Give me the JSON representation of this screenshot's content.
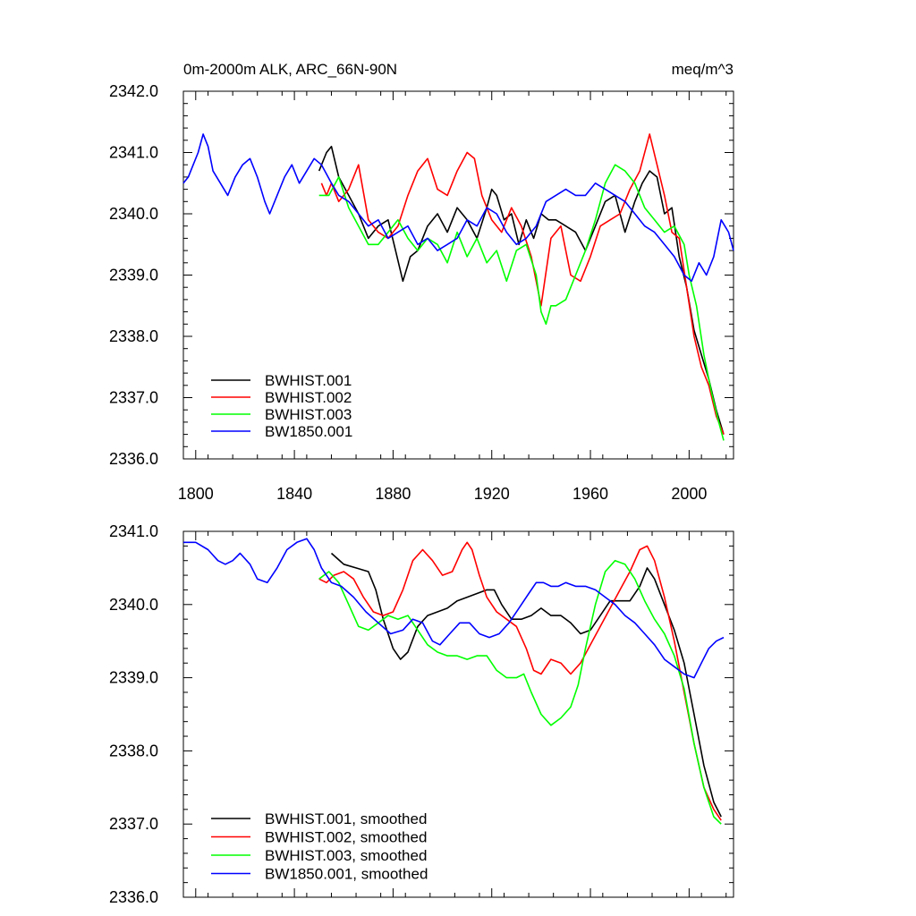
{
  "chart_data": [
    {
      "type": "line",
      "title": "0m-2000m ALK, ARC_66N-90N",
      "units": "meq/m^3",
      "xlim": [
        1795,
        2018
      ],
      "ylim": [
        2336.0,
        2342.0
      ],
      "yticks": [
        2336.0,
        2337.0,
        2338.0,
        2339.0,
        2340.0,
        2341.0,
        2342.0
      ],
      "ytick_labels": [
        "2336.0",
        "2337.0",
        "2338.0",
        "2339.0",
        "2340.0",
        "2341.0",
        "2342.0"
      ],
      "xticks": [
        1800,
        1840,
        1880,
        1920,
        1960,
        2000
      ],
      "xtick_labels": [
        "1800",
        "1840",
        "1880",
        "1920",
        "1960",
        "2000"
      ],
      "legend_position": "bottom-left",
      "series": [
        {
          "name": "BWHIST.001",
          "color": "#000000",
          "x": [
            1850,
            1853,
            1855,
            1858,
            1862,
            1866,
            1870,
            1874,
            1878,
            1881,
            1884,
            1887,
            1890,
            1894,
            1898,
            1902,
            1906,
            1910,
            1914,
            1918,
            1920,
            1922,
            1925,
            1928,
            1931,
            1934,
            1937,
            1940,
            1943,
            1946,
            1950,
            1954,
            1958,
            1962,
            1966,
            1970,
            1974,
            1978,
            1981,
            1984,
            1987,
            1990,
            1993,
            1996,
            1999,
            2002,
            2005,
            2008,
            2011,
            2014
          ],
          "y": [
            2340.7,
            2341.0,
            2341.1,
            2340.6,
            2340.3,
            2340.0,
            2339.6,
            2339.8,
            2339.9,
            2339.4,
            2338.9,
            2339.3,
            2339.4,
            2339.8,
            2340.0,
            2339.7,
            2340.1,
            2339.9,
            2339.6,
            2340.1,
            2340.4,
            2340.3,
            2339.9,
            2340.0,
            2339.5,
            2339.9,
            2339.6,
            2340.0,
            2339.9,
            2339.9,
            2339.8,
            2339.7,
            2339.4,
            2339.8,
            2340.2,
            2340.3,
            2339.7,
            2340.2,
            2340.5,
            2340.7,
            2340.6,
            2340.0,
            2340.1,
            2339.3,
            2338.8,
            2338.1,
            2337.7,
            2337.3,
            2336.8,
            2336.4
          ]
        },
        {
          "name": "BWHIST.002",
          "color": "#ff0000",
          "x": [
            1851,
            1853,
            1855,
            1858,
            1862,
            1866,
            1870,
            1874,
            1878,
            1882,
            1886,
            1890,
            1894,
            1898,
            1902,
            1906,
            1910,
            1913,
            1916,
            1920,
            1924,
            1928,
            1932,
            1936,
            1940,
            1944,
            1948,
            1952,
            1956,
            1960,
            1964,
            1968,
            1972,
            1976,
            1980,
            1984,
            1987,
            1990,
            1993,
            1996,
            1999,
            2002,
            2005,
            2008,
            2011,
            2014
          ],
          "y": [
            2340.5,
            2340.3,
            2340.5,
            2340.2,
            2340.4,
            2340.8,
            2339.9,
            2339.7,
            2339.6,
            2339.8,
            2340.3,
            2340.7,
            2340.9,
            2340.4,
            2340.3,
            2340.7,
            2341.0,
            2340.9,
            2340.3,
            2339.9,
            2339.7,
            2340.1,
            2339.8,
            2339.3,
            2338.5,
            2339.6,
            2339.8,
            2339.0,
            2338.9,
            2339.3,
            2339.8,
            2339.9,
            2340.0,
            2340.4,
            2340.7,
            2341.3,
            2340.8,
            2340.3,
            2339.7,
            2339.6,
            2338.8,
            2338.0,
            2337.5,
            2337.2,
            2336.7,
            2336.4
          ]
        },
        {
          "name": "BWHIST.003",
          "color": "#00ff00",
          "x": [
            1850,
            1854,
            1858,
            1862,
            1866,
            1870,
            1874,
            1878,
            1882,
            1886,
            1890,
            1894,
            1898,
            1902,
            1906,
            1910,
            1914,
            1918,
            1922,
            1926,
            1930,
            1934,
            1938,
            1940,
            1942,
            1944,
            1946,
            1950,
            1954,
            1958,
            1962,
            1966,
            1970,
            1974,
            1978,
            1982,
            1986,
            1990,
            1994,
            1998,
            2000,
            2003,
            2006,
            2009,
            2012,
            2014
          ],
          "y": [
            2340.3,
            2340.3,
            2340.6,
            2340.1,
            2339.8,
            2339.5,
            2339.5,
            2339.7,
            2339.9,
            2339.6,
            2339.4,
            2339.6,
            2339.5,
            2339.2,
            2339.7,
            2339.3,
            2339.6,
            2339.2,
            2339.4,
            2338.9,
            2339.4,
            2339.5,
            2339.0,
            2338.4,
            2338.2,
            2338.5,
            2338.5,
            2338.6,
            2339.0,
            2339.4,
            2339.9,
            2340.5,
            2340.8,
            2340.7,
            2340.5,
            2340.1,
            2339.9,
            2339.7,
            2339.8,
            2339.5,
            2339.0,
            2338.5,
            2337.7,
            2337.1,
            2336.6,
            2336.3
          ]
        },
        {
          "name": "BW1850.001",
          "color": "#0000ff",
          "x": [
            1795,
            1797,
            1799,
            1801,
            1803,
            1805,
            1807,
            1810,
            1813,
            1816,
            1819,
            1822,
            1825,
            1828,
            1830,
            1833,
            1836,
            1839,
            1842,
            1845,
            1848,
            1851,
            1855,
            1858,
            1862,
            1866,
            1870,
            1874,
            1878,
            1882,
            1886,
            1890,
            1894,
            1898,
            1902,
            1906,
            1910,
            1914,
            1918,
            1922,
            1926,
            1930,
            1934,
            1938,
            1942,
            1946,
            1950,
            1954,
            1958,
            1962,
            1966,
            1970,
            1974,
            1978,
            1982,
            1986,
            1990,
            1994,
            1998,
            2001,
            2004,
            2007,
            2010,
            2013,
            2016,
            2018
          ],
          "y": [
            2340.5,
            2340.6,
            2340.8,
            2341.0,
            2341.3,
            2341.1,
            2340.7,
            2340.5,
            2340.3,
            2340.6,
            2340.8,
            2340.9,
            2340.6,
            2340.2,
            2340.0,
            2340.3,
            2340.6,
            2340.8,
            2340.5,
            2340.7,
            2340.9,
            2340.8,
            2340.5,
            2340.3,
            2340.2,
            2340.0,
            2339.8,
            2339.9,
            2339.6,
            2339.7,
            2339.8,
            2339.5,
            2339.6,
            2339.4,
            2339.5,
            2339.6,
            2339.9,
            2339.8,
            2340.1,
            2340.0,
            2339.7,
            2339.5,
            2339.6,
            2339.8,
            2340.2,
            2340.3,
            2340.4,
            2340.3,
            2340.3,
            2340.5,
            2340.4,
            2340.3,
            2340.2,
            2340.0,
            2339.8,
            2339.7,
            2339.5,
            2339.3,
            2339.0,
            2338.9,
            2339.2,
            2339.0,
            2339.3,
            2339.9,
            2339.7,
            2339.4
          ]
        }
      ]
    },
    {
      "type": "line",
      "title": "",
      "xlim": [
        1795,
        2018
      ],
      "ylim": [
        2336.0,
        2341.0
      ],
      "yticks": [
        2336.0,
        2337.0,
        2338.0,
        2339.0,
        2340.0,
        2341.0
      ],
      "ytick_labels": [
        "2336.0",
        "2337.0",
        "2338.0",
        "2339.0",
        "2340.0",
        "2341.0"
      ],
      "xticks": [
        1800,
        1840,
        1880,
        1920,
        1960,
        2000
      ],
      "xtick_labels": [],
      "legend_position": "bottom-left",
      "series": [
        {
          "name": "BWHIST.001, smoothed",
          "color": "#000000",
          "x": [
            1855,
            1860,
            1865,
            1870,
            1873,
            1876,
            1880,
            1883,
            1886,
            1890,
            1894,
            1898,
            1902,
            1906,
            1910,
            1914,
            1918,
            1921,
            1924,
            1928,
            1932,
            1936,
            1940,
            1944,
            1948,
            1952,
            1956,
            1960,
            1964,
            1968,
            1972,
            1976,
            1980,
            1983,
            1986,
            1990,
            1994,
            1998,
            2002,
            2006,
            2010,
            2013
          ],
          "y": [
            2340.7,
            2340.55,
            2340.5,
            2340.45,
            2340.2,
            2339.8,
            2339.4,
            2339.25,
            2339.35,
            2339.7,
            2339.85,
            2339.9,
            2339.95,
            2340.05,
            2340.1,
            2340.15,
            2340.2,
            2340.2,
            2340.0,
            2339.8,
            2339.8,
            2339.85,
            2339.95,
            2339.85,
            2339.85,
            2339.75,
            2339.6,
            2339.65,
            2339.85,
            2340.05,
            2340.05,
            2340.05,
            2340.25,
            2340.5,
            2340.35,
            2340.0,
            2339.65,
            2339.2,
            2338.5,
            2337.8,
            2337.3,
            2337.1
          ]
        },
        {
          "name": "BWHIST.002, smoothed",
          "color": "#ff0000",
          "x": [
            1850,
            1853,
            1856,
            1860,
            1864,
            1868,
            1872,
            1876,
            1880,
            1884,
            1888,
            1892,
            1896,
            1900,
            1904,
            1908,
            1910,
            1912,
            1915,
            1918,
            1922,
            1926,
            1930,
            1934,
            1937,
            1940,
            1944,
            1948,
            1952,
            1956,
            1960,
            1964,
            1968,
            1972,
            1976,
            1980,
            1983,
            1986,
            1990,
            1994,
            1998,
            2002,
            2006,
            2010,
            2013
          ],
          "y": [
            2340.35,
            2340.3,
            2340.4,
            2340.45,
            2340.35,
            2340.1,
            2339.9,
            2339.85,
            2339.9,
            2340.2,
            2340.6,
            2340.75,
            2340.6,
            2340.4,
            2340.45,
            2340.75,
            2340.85,
            2340.75,
            2340.4,
            2340.1,
            2339.9,
            2339.8,
            2339.7,
            2339.4,
            2339.1,
            2339.05,
            2339.25,
            2339.2,
            2339.05,
            2339.2,
            2339.45,
            2339.7,
            2339.95,
            2340.2,
            2340.45,
            2340.75,
            2340.8,
            2340.6,
            2340.1,
            2339.5,
            2338.8,
            2338.1,
            2337.5,
            2337.2,
            2337.05
          ]
        },
        {
          "name": "BWHIST.003, smoothed",
          "color": "#00ff00",
          "x": [
            1850,
            1854,
            1858,
            1862,
            1866,
            1870,
            1874,
            1878,
            1882,
            1886,
            1890,
            1894,
            1898,
            1902,
            1906,
            1910,
            1914,
            1918,
            1922,
            1926,
            1930,
            1933,
            1936,
            1940,
            1944,
            1948,
            1952,
            1955,
            1958,
            1962,
            1966,
            1970,
            1974,
            1978,
            1982,
            1986,
            1990,
            1994,
            1998,
            2002,
            2006,
            2010,
            2013
          ],
          "y": [
            2340.35,
            2340.45,
            2340.3,
            2340.0,
            2339.7,
            2339.65,
            2339.75,
            2339.85,
            2339.8,
            2339.85,
            2339.65,
            2339.45,
            2339.35,
            2339.3,
            2339.3,
            2339.25,
            2339.3,
            2339.3,
            2339.1,
            2339.0,
            2339.0,
            2339.05,
            2338.8,
            2338.5,
            2338.35,
            2338.45,
            2338.6,
            2338.9,
            2339.4,
            2340.0,
            2340.45,
            2340.6,
            2340.55,
            2340.35,
            2340.05,
            2339.8,
            2339.6,
            2339.3,
            2338.85,
            2338.1,
            2337.5,
            2337.1,
            2337.0
          ]
        },
        {
          "name": "BW1850.001, smoothed",
          "color": "#0000ff",
          "x": [
            1795,
            1800,
            1805,
            1809,
            1812,
            1815,
            1818,
            1822,
            1825,
            1829,
            1833,
            1837,
            1841,
            1845,
            1848,
            1851,
            1855,
            1859,
            1864,
            1869,
            1874,
            1879,
            1884,
            1888,
            1892,
            1896,
            1899,
            1903,
            1907,
            1911,
            1915,
            1919,
            1923,
            1927,
            1931,
            1935,
            1938,
            1941,
            1944,
            1947,
            1950,
            1954,
            1958,
            1962,
            1966,
            1970,
            1974,
            1978,
            1982,
            1986,
            1990,
            1994,
            1998,
            2002,
            2005,
            2008,
            2011,
            2014
          ],
          "y": [
            2340.85,
            2340.85,
            2340.75,
            2340.6,
            2340.55,
            2340.6,
            2340.7,
            2340.55,
            2340.35,
            2340.3,
            2340.5,
            2340.75,
            2340.85,
            2340.9,
            2340.75,
            2340.5,
            2340.3,
            2340.25,
            2340.1,
            2339.9,
            2339.75,
            2339.6,
            2339.65,
            2339.8,
            2339.75,
            2339.5,
            2339.45,
            2339.6,
            2339.75,
            2339.75,
            2339.6,
            2339.55,
            2339.6,
            2339.75,
            2339.95,
            2340.15,
            2340.3,
            2340.3,
            2340.25,
            2340.25,
            2340.3,
            2340.25,
            2340.25,
            2340.2,
            2340.1,
            2340.0,
            2339.85,
            2339.75,
            2339.6,
            2339.45,
            2339.25,
            2339.15,
            2339.05,
            2339.0,
            2339.2,
            2339.4,
            2339.5,
            2339.55
          ]
        }
      ]
    }
  ]
}
